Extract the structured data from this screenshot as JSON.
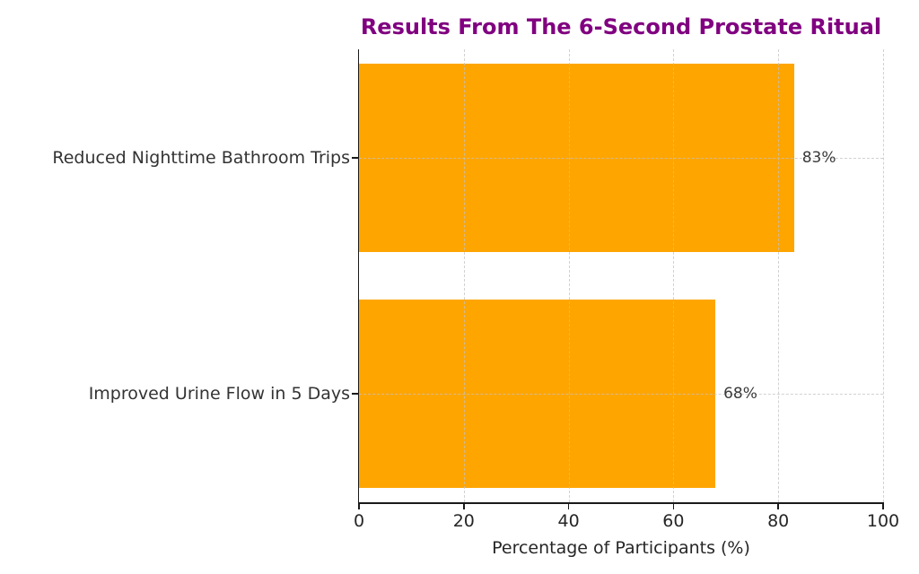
{
  "chart_data": {
    "type": "bar",
    "orientation": "horizontal",
    "title": "Results From The 6-Second Prostate Ritual",
    "categories": [
      "Reduced Nighttime Bathroom Trips",
      "Improved Urine Flow in 5 Days"
    ],
    "values": [
      83,
      68
    ],
    "value_labels": [
      "83%",
      "68%"
    ],
    "xlabel": "Percentage of Participants (%)",
    "ylabel": "",
    "xlim": [
      0,
      100
    ],
    "xticks": [
      0,
      20,
      40,
      60,
      80,
      100
    ],
    "grid": "dashed, vertical at xticks and horizontal at bar centers",
    "legend": "none",
    "colors": {
      "bar": "#FFA500",
      "title": "#800080",
      "tick_text": "#262626",
      "category_text": "#333333",
      "value_text": "#3a3a3a",
      "gridline": "#c2c2c2",
      "spine": "#1a1a1a",
      "background": "#ffffff"
    }
  }
}
